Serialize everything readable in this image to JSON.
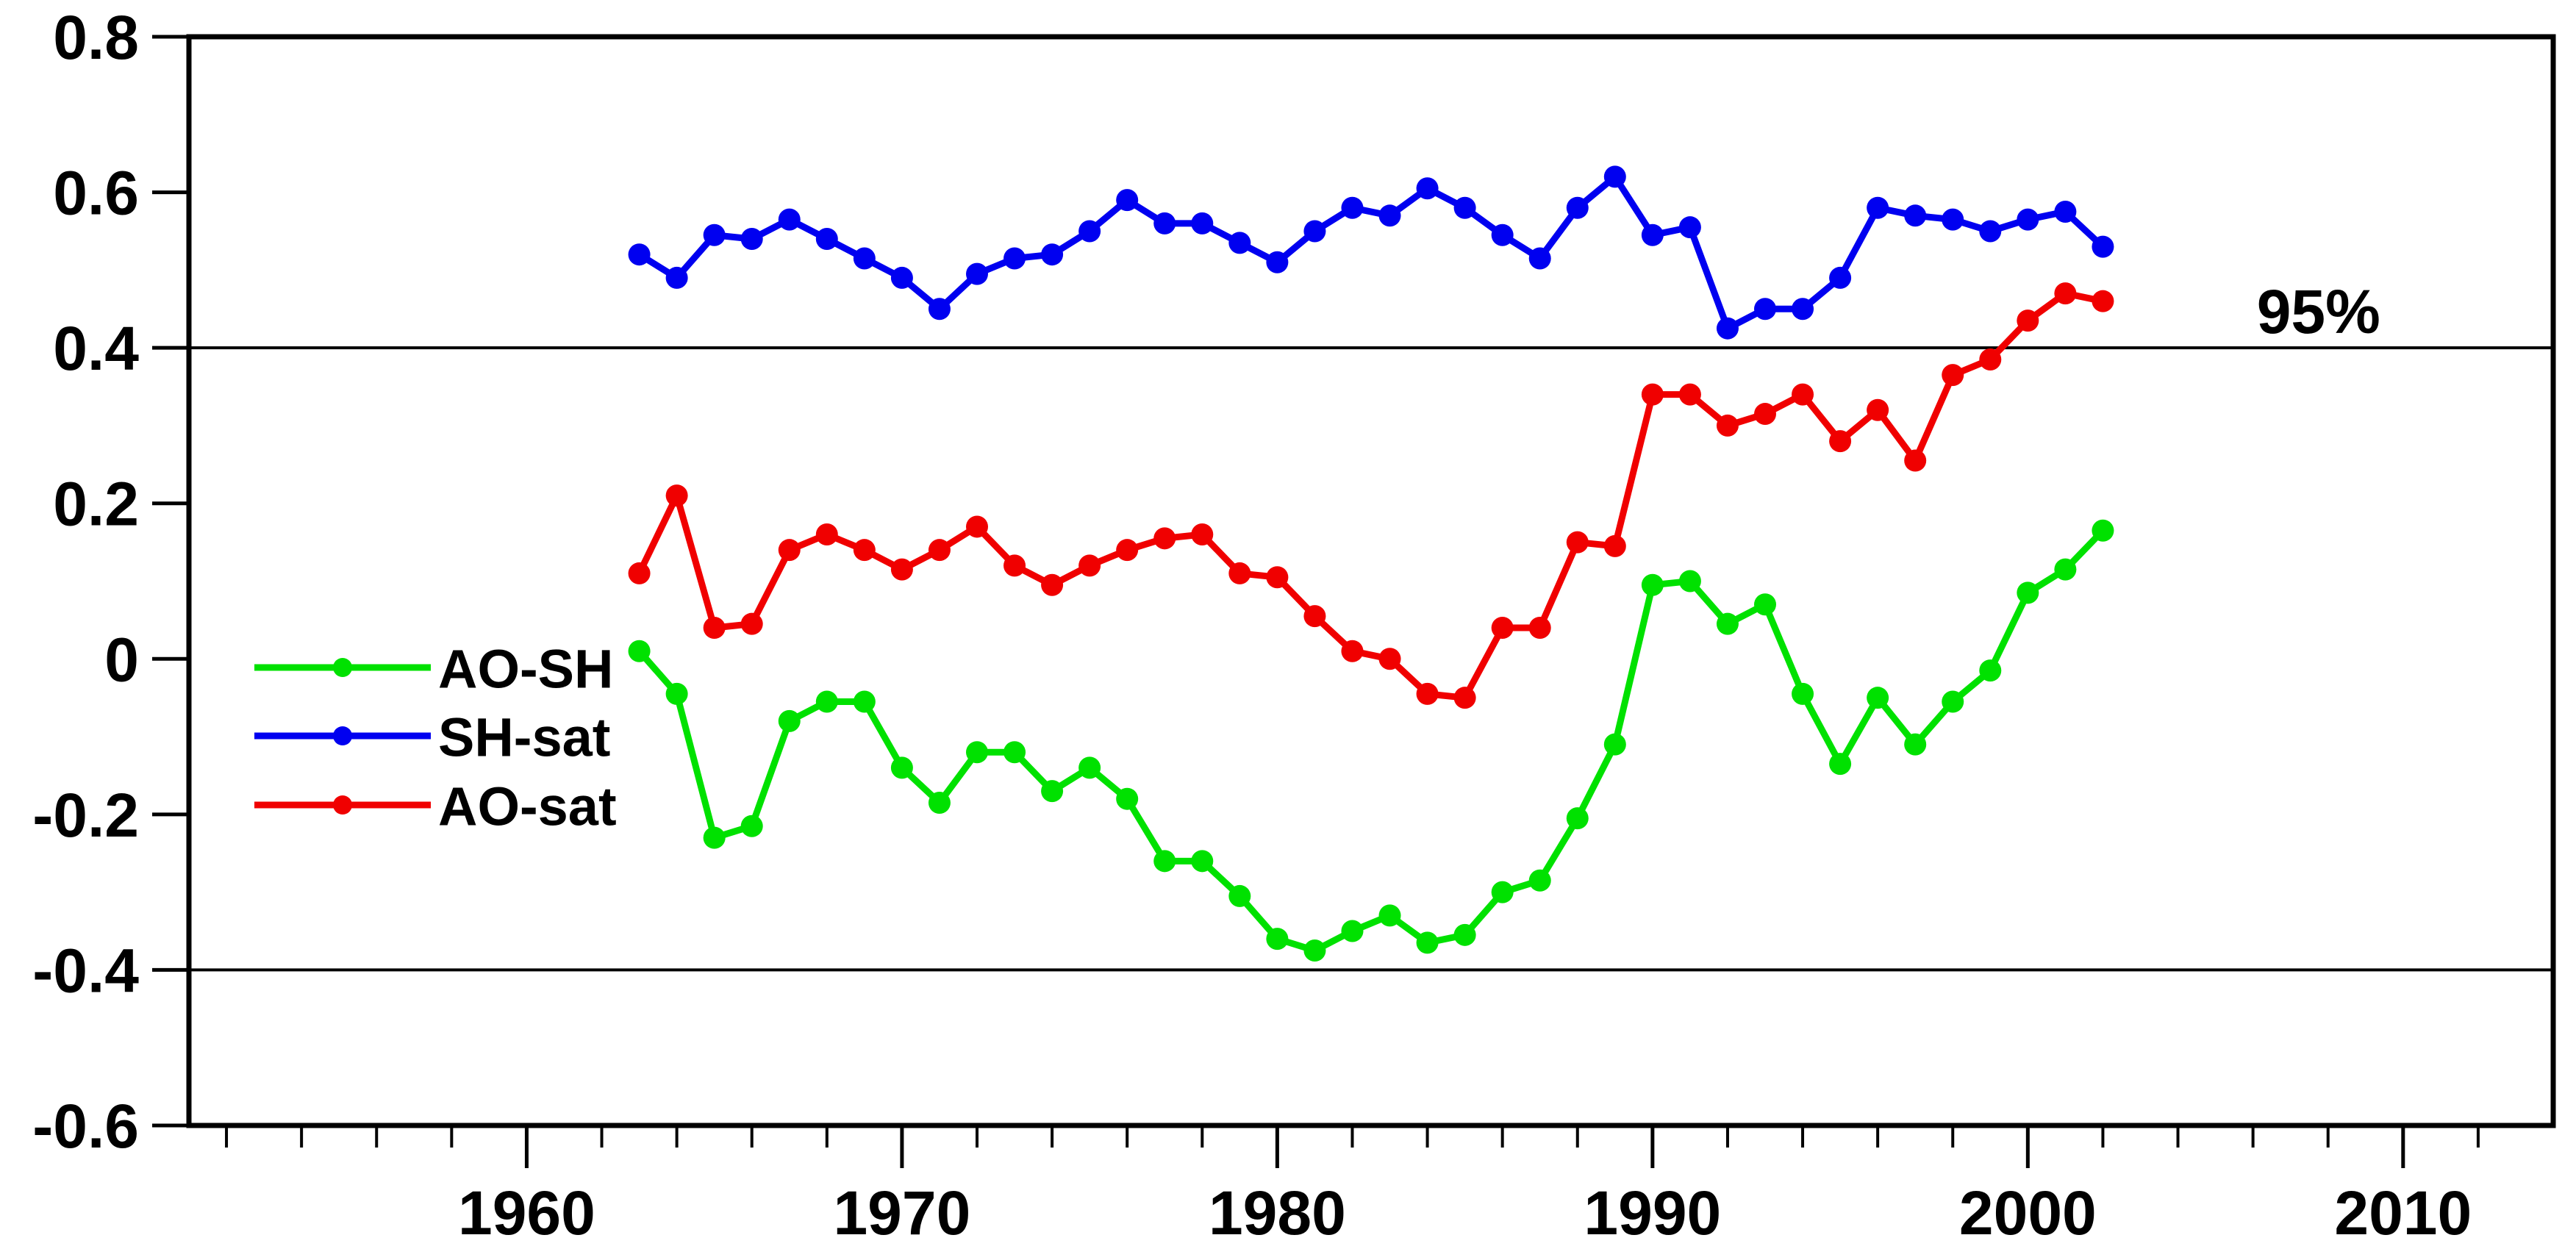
{
  "chart_data": {
    "type": "line",
    "title": "",
    "xlabel": "",
    "ylabel": "",
    "xlim": [
      1951,
      2014
    ],
    "ylim": [
      -0.6,
      0.8
    ],
    "grid": false,
    "x": [
      1963,
      1964,
      1965,
      1966,
      1967,
      1968,
      1969,
      1970,
      1971,
      1972,
      1973,
      1974,
      1975,
      1976,
      1977,
      1978,
      1979,
      1980,
      1981,
      1982,
      1983,
      1984,
      1985,
      1986,
      1987,
      1988,
      1989,
      1990,
      1991,
      1992,
      1993,
      1994,
      1995,
      1996,
      1997,
      1998,
      1999,
      2000,
      2001,
      2002
    ],
    "series": [
      {
        "name": "AO-SH",
        "color": "#00e100",
        "values": [
          0.01,
          -0.045,
          -0.23,
          -0.215,
          -0.08,
          -0.055,
          -0.055,
          -0.14,
          -0.185,
          -0.12,
          -0.12,
          -0.17,
          -0.14,
          -0.18,
          -0.26,
          -0.26,
          -0.305,
          -0.36,
          -0.375,
          -0.35,
          -0.33,
          -0.365,
          -0.355,
          -0.3,
          -0.285,
          -0.205,
          -0.11,
          0.095,
          0.1,
          0.045,
          0.07,
          -0.045,
          -0.135,
          -0.05,
          -0.11,
          -0.055,
          -0.015,
          0.085,
          0.115,
          0.165
        ]
      },
      {
        "name": "SH-sat",
        "color": "#0000f0",
        "values": [
          0.52,
          0.49,
          0.545,
          0.54,
          0.565,
          0.54,
          0.515,
          0.49,
          0.45,
          0.495,
          0.515,
          0.52,
          0.55,
          0.59,
          0.56,
          0.56,
          0.535,
          0.51,
          0.55,
          0.58,
          0.57,
          0.605,
          0.58,
          0.545,
          0.515,
          0.58,
          0.62,
          0.545,
          0.555,
          0.425,
          0.45,
          0.45,
          0.49,
          0.58,
          0.57,
          0.565,
          0.55,
          0.565,
          0.575,
          0.53
        ]
      },
      {
        "name": "AO-sat",
        "color": "#f00000",
        "values": [
          0.11,
          0.21,
          0.04,
          0.045,
          0.14,
          0.16,
          0.14,
          0.115,
          0.14,
          0.17,
          0.12,
          0.095,
          0.12,
          0.14,
          0.155,
          0.16,
          0.11,
          0.105,
          0.055,
          0.01,
          0.0,
          -0.045,
          -0.05,
          0.04,
          0.04,
          0.15,
          0.145,
          0.34,
          0.34,
          0.3,
          0.315,
          0.34,
          0.28,
          0.32,
          0.255,
          0.365,
          0.385,
          0.435,
          0.47,
          0.46
        ]
      }
    ],
    "yticks": [
      {
        "value": 0.8,
        "label": "0.8"
      },
      {
        "value": 0.6,
        "label": "0.6"
      },
      {
        "value": 0.4,
        "label": "0.4"
      },
      {
        "value": 0.2,
        "label": "0.2"
      },
      {
        "value": 0.0,
        "label": "0"
      },
      {
        "value": -0.2,
        "label": "-0.2"
      },
      {
        "value": -0.4,
        "label": "-0.4"
      },
      {
        "value": -0.6,
        "label": "-0.6"
      }
    ],
    "xticks_major": [
      {
        "value": 1960,
        "label": "1960"
      },
      {
        "value": 1970,
        "label": "1970"
      },
      {
        "value": 1980,
        "label": "1980"
      },
      {
        "value": 1990,
        "label": "1990"
      },
      {
        "value": 2000,
        "label": "2000"
      },
      {
        "value": 2010,
        "label": "2010"
      }
    ],
    "xticks_minor_start": 1952,
    "xticks_minor_end": 2012,
    "xticks_minor_step": 2,
    "reference_lines": [
      {
        "value": 0.4,
        "label": "95%"
      },
      {
        "value": -0.4,
        "label": ""
      }
    ],
    "reference_label": "95%",
    "legend": {
      "position": "inside-left",
      "entries": [
        {
          "name": "AO-SH",
          "color": "#00e100"
        },
        {
          "name": "SH-sat",
          "color": "#0000f0"
        },
        {
          "name": "AO-sat",
          "color": "#f00000"
        }
      ]
    },
    "axis_color": "#000000"
  }
}
